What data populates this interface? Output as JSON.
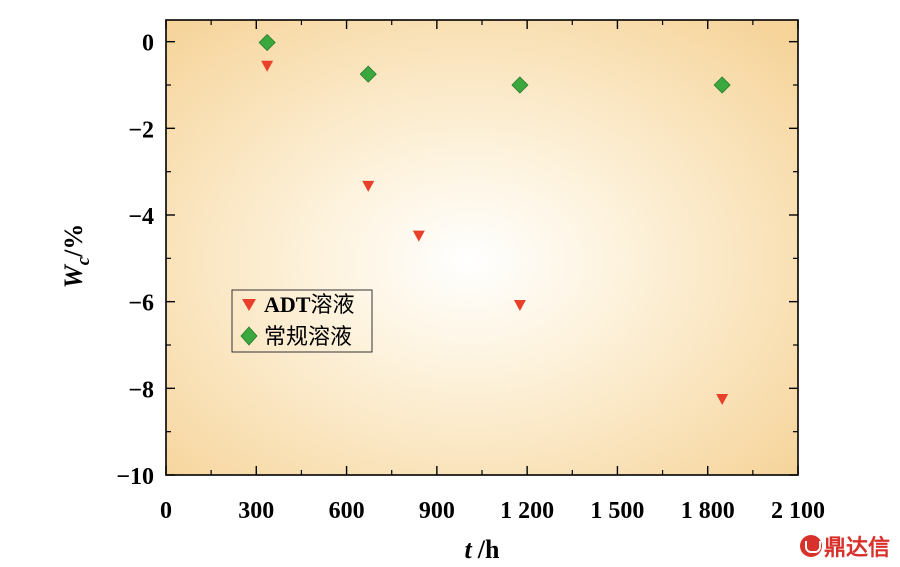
{
  "chart_data": {
    "type": "scatter",
    "xlabel_var": "t",
    "xlabel_unit": "/h",
    "ylabel_var": "W",
    "ylabel_sub": "c",
    "ylabel_unit": "/%",
    "xlim": [
      0,
      2100
    ],
    "ylim": [
      -10,
      0.5
    ],
    "xticks": [
      0,
      300,
      600,
      900,
      1200,
      1500,
      1800,
      2100
    ],
    "xtick_labels": [
      "0",
      "300",
      "600",
      "900",
      "1 200",
      "1 500",
      "1 800",
      "2 100"
    ],
    "yticks": [
      0,
      -2,
      -4,
      -6,
      -8,
      -10
    ],
    "ytick_labels": [
      "0",
      "−2",
      "−4",
      "−6",
      "−8",
      "−10"
    ],
    "grid": false,
    "legend_position": "left-middle",
    "series": [
      {
        "name_latin": "ADT",
        "name_cjk": "溶液",
        "marker": "triangle-down",
        "color": "#e8402a",
        "points": [
          [
            336,
            -0.58
          ],
          [
            672,
            -3.35
          ],
          [
            840,
            -4.5
          ],
          [
            1176,
            -6.1
          ],
          [
            1848,
            -8.27
          ]
        ]
      },
      {
        "name_latin": "",
        "name_cjk": "常规溶液",
        "marker": "diamond",
        "color": "#3aa83c",
        "points": [
          [
            336,
            -0.02
          ],
          [
            672,
            -0.75
          ],
          [
            1176,
            -1.0
          ],
          [
            1848,
            -1.0
          ]
        ]
      }
    ]
  },
  "watermark": {
    "text": "鼎达信"
  }
}
